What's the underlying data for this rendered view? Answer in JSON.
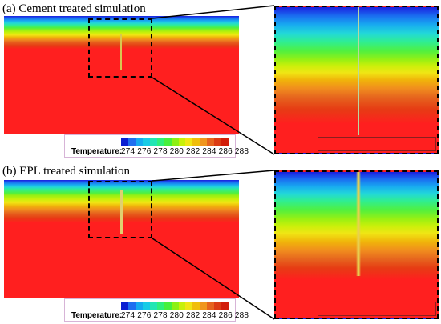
{
  "panels": [
    {
      "id": "a",
      "title": "(a) Cement treated simulation"
    },
    {
      "id": "b",
      "title": "(b) EPL treated simulation"
    }
  ],
  "legend": {
    "label": "Temperature:",
    "ticks": "274 276 278 280 282 284 286 288",
    "colors": [
      "#0a1ed2",
      "#1e6ef0",
      "#14aaf0",
      "#16cbe6",
      "#21e6b4",
      "#2ef07a",
      "#46f03c",
      "#8cf014",
      "#c8f00a",
      "#f0e614",
      "#f0be0a",
      "#f0961e",
      "#e6641e",
      "#dc3c14",
      "#d21e0a"
    ]
  },
  "colors": {
    "field_base": "#ff1f1f",
    "frame": "#000000",
    "legend_border": "#d7b4d7"
  }
}
